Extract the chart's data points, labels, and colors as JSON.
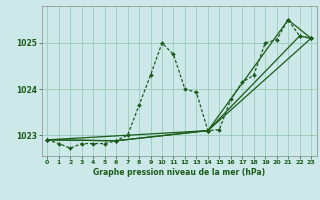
{
  "title": "Graphe pression niveau de la mer (hPa)",
  "bg_color": "#cce8e8",
  "grid_color": "#99ccbb",
  "line_color": "#1a5c1a",
  "dot_color": "#1a5c1a",
  "xlim": [
    -0.5,
    23.5
  ],
  "ylim": [
    1022.55,
    1025.8
  ],
  "yticks": [
    1023,
    1024,
    1025
  ],
  "xticks": [
    0,
    1,
    2,
    3,
    4,
    5,
    6,
    7,
    8,
    9,
    10,
    11,
    12,
    13,
    14,
    15,
    16,
    17,
    18,
    19,
    20,
    21,
    22,
    23
  ],
  "series1_x": [
    0,
    1,
    2,
    3,
    4,
    5,
    6,
    7,
    8,
    9,
    10,
    11,
    12,
    13,
    14,
    15,
    16,
    17,
    18,
    19,
    20,
    21,
    22,
    23
  ],
  "series1_y": [
    1022.9,
    1022.82,
    1022.72,
    1022.82,
    1022.82,
    1022.82,
    1022.88,
    1023.0,
    1023.65,
    1024.3,
    1025.0,
    1024.75,
    1024.0,
    1023.93,
    1023.1,
    1023.12,
    1023.78,
    1024.15,
    1024.3,
    1025.0,
    1025.07,
    1025.5,
    1025.15,
    1025.1
  ],
  "series2_x": [
    0,
    6,
    14,
    21,
    23
  ],
  "series2_y": [
    1022.9,
    1022.88,
    1023.1,
    1025.5,
    1025.1
  ],
  "series3_x": [
    0,
    6,
    14,
    22,
    23
  ],
  "series3_y": [
    1022.9,
    1022.88,
    1023.1,
    1025.15,
    1025.1
  ],
  "series4_x": [
    0,
    14,
    23
  ],
  "series4_y": [
    1022.9,
    1023.1,
    1025.1
  ]
}
